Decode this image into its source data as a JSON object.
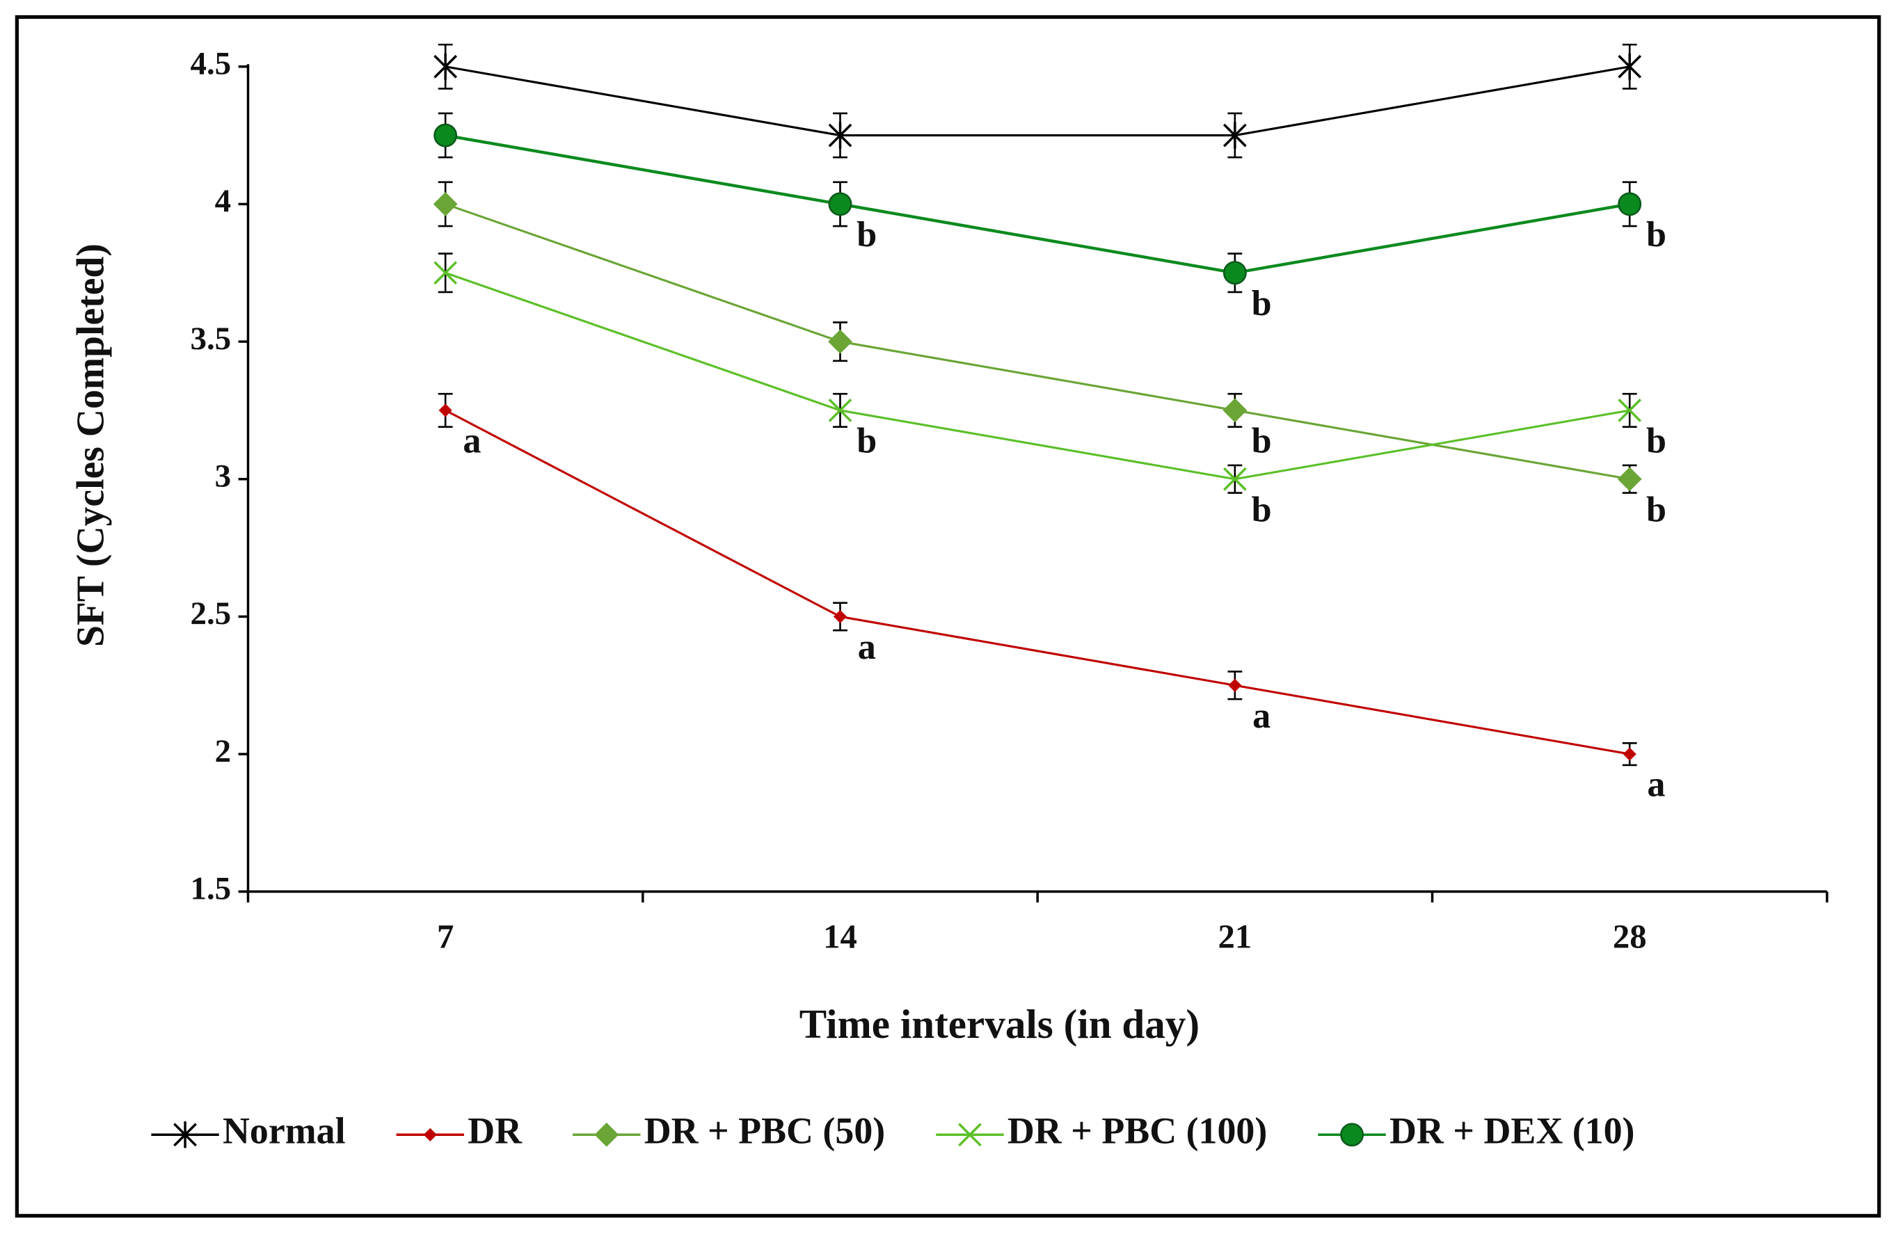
{
  "chart_data": {
    "type": "line",
    "x_label": "Time intervals (in day)",
    "y_label": "SFT (Cycles Completed)",
    "categories": [
      "7",
      "14",
      "21",
      "28"
    ],
    "ylim": [
      1.5,
      4.5
    ],
    "yticks": [
      1.5,
      2,
      2.5,
      3,
      3.5,
      4,
      4.5
    ],
    "legend": "bottom",
    "series": [
      {
        "name": "Normal",
        "color": "#000000",
        "marker": "asterisk",
        "values": [
          4.5,
          4.25,
          4.25,
          4.5
        ],
        "errors": [
          0.08,
          0.08,
          0.08,
          0.08
        ],
        "labels": [
          null,
          null,
          null,
          null
        ]
      },
      {
        "name": "DR",
        "color": "#c00000",
        "marker": "small-diamond",
        "values": [
          3.25,
          2.5,
          2.25,
          2.0
        ],
        "errors": [
          0.06,
          0.05,
          0.05,
          0.04
        ],
        "labels": [
          "a",
          "a",
          "a",
          "a"
        ]
      },
      {
        "name": "DR + PBC (50)",
        "color": "#6aa536",
        "marker": "diamond",
        "values": [
          4.0,
          3.5,
          3.25,
          3.0
        ],
        "errors": [
          0.08,
          0.07,
          0.06,
          0.05
        ],
        "labels": [
          null,
          null,
          "b",
          "b"
        ]
      },
      {
        "name": "DR + PBC (100)",
        "color": "#5cbf2a",
        "marker": "x",
        "values": [
          3.75,
          3.25,
          3.0,
          3.25
        ],
        "errors": [
          0.07,
          0.06,
          0.05,
          0.06
        ],
        "labels": [
          null,
          "b",
          "b",
          "b"
        ]
      },
      {
        "name": "DR + DEX (10)",
        "color": "#0a8a1e",
        "marker": "circle",
        "values": [
          4.25,
          4.0,
          3.75,
          4.0
        ],
        "errors": [
          0.08,
          0.08,
          0.07,
          0.08
        ],
        "labels": [
          null,
          "b",
          "b",
          "b"
        ]
      }
    ]
  }
}
